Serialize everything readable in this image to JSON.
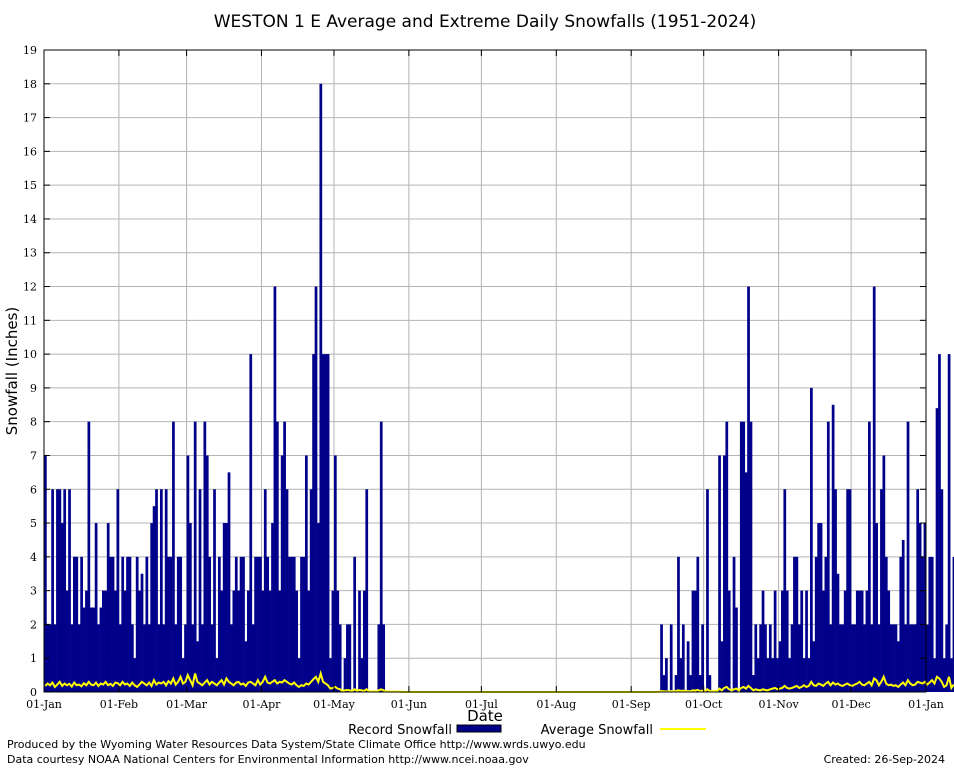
{
  "chart_data": {
    "type": "bar",
    "title": "WESTON 1 E Average and Extreme Daily Snowfalls (1951-2024)",
    "xlabel": "Date",
    "ylabel": "Snowfall (Inches)",
    "ylim": [
      0,
      19
    ],
    "yticks": [
      "0",
      "1",
      "2",
      "3",
      "4",
      "5",
      "6",
      "7",
      "8",
      "9",
      "10",
      "11",
      "12",
      "13",
      "14",
      "15",
      "16",
      "17",
      "18",
      "19"
    ],
    "xticks": [
      {
        "label": "01-Jan",
        "day": 0
      },
      {
        "label": "01-Feb",
        "day": 31
      },
      {
        "label": "01-Mar",
        "day": 59
      },
      {
        "label": "01-Apr",
        "day": 90
      },
      {
        "label": "01-May",
        "day": 120
      },
      {
        "label": "01-Jun",
        "day": 151
      },
      {
        "label": "01-Jul",
        "day": 181
      },
      {
        "label": "01-Aug",
        "day": 212
      },
      {
        "label": "01-Sep",
        "day": 243
      },
      {
        "label": "01-Oct",
        "day": 273
      },
      {
        "label": "01-Nov",
        "day": 304
      },
      {
        "label": "01-Dec",
        "day": 334
      },
      {
        "label": "01-Jan",
        "day": 365
      }
    ],
    "grid": true,
    "colors": {
      "record": "#00008b",
      "average": "#ffff00",
      "grid": "#b4b4b4"
    },
    "series": [
      {
        "name": "Record Snowfall",
        "start_date": "01-Jan",
        "values": [
          7,
          2,
          2,
          6,
          2,
          6,
          6,
          5,
          6,
          3,
          6,
          2,
          4,
          4,
          2,
          4,
          2.5,
          3,
          8,
          2.5,
          2.5,
          5,
          2,
          2.5,
          3,
          3,
          5,
          4,
          4,
          3,
          6,
          2,
          4,
          3,
          4,
          4,
          2,
          1,
          4,
          3,
          3.5,
          2,
          4,
          2,
          5,
          5.5,
          6,
          2,
          6,
          2,
          6,
          4,
          4,
          8,
          2,
          4,
          4,
          1,
          2,
          7,
          5,
          2,
          8,
          1.5,
          6,
          2,
          8,
          7,
          4,
          2,
          6,
          1,
          4,
          3,
          5,
          5,
          6.5,
          2,
          3,
          4,
          3,
          4,
          4,
          1.5,
          3,
          10,
          2,
          4,
          4,
          4,
          3,
          6,
          4,
          3,
          5,
          12,
          8,
          3,
          7,
          8,
          6,
          4,
          4,
          4,
          3,
          1,
          4,
          4,
          7,
          3,
          6,
          10,
          12,
          5,
          18,
          10,
          10,
          10,
          1,
          3,
          7,
          3,
          2,
          0,
          1,
          2,
          2,
          0,
          4,
          0,
          3,
          1,
          3,
          6,
          0,
          0,
          0,
          0,
          2,
          8,
          2,
          0,
          0,
          0,
          0,
          0,
          0,
          0,
          0,
          0,
          0,
          0,
          0,
          0,
          0,
          0,
          0,
          0,
          0,
          0,
          0,
          0,
          0,
          0,
          0,
          0,
          0,
          0,
          0,
          0,
          0,
          0,
          0,
          0,
          0,
          0,
          0,
          0,
          0,
          0,
          0,
          0,
          0,
          0,
          0,
          0,
          0,
          0,
          0,
          0,
          0,
          0,
          0,
          0,
          0,
          0,
          0,
          0,
          0,
          0,
          0,
          0,
          0,
          0,
          0,
          0,
          0,
          0,
          0,
          0,
          0,
          0,
          0,
          0,
          0,
          0,
          0,
          0,
          0,
          0,
          0,
          0,
          0,
          0,
          0,
          0,
          0,
          0,
          0,
          0,
          0,
          0,
          0,
          0,
          0,
          0,
          0,
          0,
          0,
          0,
          0,
          0,
          0,
          0,
          0,
          0,
          0,
          0,
          0,
          0,
          0,
          0,
          0,
          0,
          0,
          2,
          0.5,
          1,
          0,
          2,
          0,
          0.5,
          4,
          1,
          2,
          0,
          1.5,
          0.5,
          3,
          3,
          4,
          0.5,
          2,
          0,
          6,
          0.5,
          0,
          0,
          0,
          7,
          1.5,
          7,
          8,
          3,
          0,
          4,
          2.5,
          0,
          8,
          8,
          6.5,
          12,
          8,
          0.5,
          2,
          1,
          2,
          3,
          2,
          1,
          2,
          1,
          3,
          1,
          1.5,
          3,
          6,
          3,
          1,
          2,
          4,
          4,
          2,
          3,
          1,
          3,
          1,
          9,
          1.5,
          4,
          5,
          5,
          3,
          4,
          8,
          2,
          8.5,
          6,
          3.5,
          2,
          2,
          3,
          6,
          6,
          2,
          2,
          3,
          3,
          3,
          2,
          3,
          8,
          2,
          12,
          5,
          2,
          6,
          7,
          4,
          3,
          2,
          2,
          2,
          1.5,
          4,
          4.5,
          2,
          8,
          2,
          2,
          2,
          6,
          5,
          4,
          5,
          2,
          4,
          4,
          1,
          8.4,
          10,
          6,
          1,
          2,
          10,
          1,
          4
        ]
      },
      {
        "name": "Average Snowfall",
        "start_date": "01-Jan",
        "values": [
          0.18,
          0.25,
          0.2,
          0.28,
          0.15,
          0.22,
          0.3,
          0.18,
          0.25,
          0.2,
          0.24,
          0.16,
          0.28,
          0.2,
          0.22,
          0.17,
          0.26,
          0.2,
          0.3,
          0.22,
          0.2,
          0.28,
          0.18,
          0.25,
          0.22,
          0.3,
          0.2,
          0.24,
          0.18,
          0.28,
          0.26,
          0.2,
          0.3,
          0.22,
          0.25,
          0.18,
          0.28,
          0.2,
          0.15,
          0.22,
          0.3,
          0.25,
          0.2,
          0.28,
          0.18,
          0.35,
          0.22,
          0.28,
          0.25,
          0.3,
          0.2,
          0.32,
          0.25,
          0.4,
          0.22,
          0.3,
          0.45,
          0.25,
          0.3,
          0.5,
          0.35,
          0.2,
          0.55,
          0.3,
          0.25,
          0.2,
          0.28,
          0.35,
          0.22,
          0.3,
          0.25,
          0.2,
          0.28,
          0.35,
          0.22,
          0.4,
          0.3,
          0.25,
          0.2,
          0.28,
          0.3,
          0.22,
          0.25,
          0.18,
          0.28,
          0.3,
          0.25,
          0.2,
          0.35,
          0.22,
          0.3,
          0.45,
          0.28,
          0.25,
          0.3,
          0.35,
          0.25,
          0.3,
          0.28,
          0.35,
          0.3,
          0.25,
          0.22,
          0.28,
          0.2,
          0.15,
          0.2,
          0.18,
          0.25,
          0.22,
          0.3,
          0.38,
          0.45,
          0.3,
          0.55,
          0.3,
          0.25,
          0.2,
          0.1,
          0.12,
          0.15,
          0.1,
          0.08,
          0.03,
          0.05,
          0.06,
          0.05,
          0.03,
          0.08,
          0.04,
          0.06,
          0.05,
          0.03,
          0.08,
          0.02,
          0.02,
          0.02,
          0.01,
          0.05,
          0.08,
          0.05,
          0.02,
          0.01,
          0.01,
          0.01,
          0.01,
          0.01,
          0.01,
          0,
          0,
          0,
          0,
          0,
          0,
          0,
          0,
          0,
          0,
          0,
          0,
          0,
          0,
          0,
          0,
          0,
          0,
          0,
          0,
          0,
          0,
          0,
          0,
          0,
          0,
          0,
          0,
          0,
          0,
          0,
          0,
          0,
          0,
          0,
          0,
          0,
          0,
          0,
          0,
          0,
          0,
          0,
          0,
          0,
          0,
          0,
          0,
          0,
          0,
          0,
          0,
          0,
          0,
          0,
          0,
          0,
          0,
          0,
          0,
          0,
          0,
          0,
          0,
          0,
          0,
          0,
          0,
          0,
          0,
          0,
          0,
          0,
          0,
          0,
          0,
          0,
          0,
          0,
          0,
          0,
          0,
          0,
          0,
          0,
          0,
          0,
          0,
          0,
          0,
          0,
          0,
          0,
          0,
          0,
          0,
          0,
          0,
          0,
          0,
          0,
          0,
          0,
          0,
          0,
          0,
          0.01,
          0.03,
          0.02,
          0.02,
          0.01,
          0.03,
          0.02,
          0.03,
          0.05,
          0.03,
          0.04,
          0.02,
          0.03,
          0.02,
          0.05,
          0.04,
          0.06,
          0.03,
          0.04,
          0.02,
          0.08,
          0.03,
          0.02,
          0.03,
          0.02,
          0.1,
          0.05,
          0.12,
          0.15,
          0.08,
          0.05,
          0.08,
          0.1,
          0.05,
          0.12,
          0.15,
          0.1,
          0.18,
          0.12,
          0.05,
          0.08,
          0.06,
          0.05,
          0.08,
          0.06,
          0.05,
          0.08,
          0.1,
          0.12,
          0.08,
          0.1,
          0.12,
          0.18,
          0.12,
          0.1,
          0.12,
          0.15,
          0.18,
          0.12,
          0.15,
          0.2,
          0.15,
          0.18,
          0.3,
          0.2,
          0.18,
          0.25,
          0.22,
          0.18,
          0.25,
          0.3,
          0.2,
          0.28,
          0.22,
          0.25,
          0.2,
          0.18,
          0.22,
          0.25,
          0.2,
          0.18,
          0.22,
          0.25,
          0.3,
          0.22,
          0.2,
          0.25,
          0.3,
          0.2,
          0.4,
          0.35,
          0.2,
          0.3,
          0.45,
          0.25,
          0.2,
          0.22,
          0.18,
          0.2,
          0.15,
          0.22,
          0.28,
          0.2,
          0.35,
          0.25,
          0.2,
          0.22,
          0.3,
          0.28,
          0.25,
          0.3,
          0.22,
          0.28,
          0.35,
          0.25,
          0.45,
          0.4,
          0.3,
          0.15,
          0.2,
          0.45,
          0.12,
          0.22
        ]
      }
    ],
    "legend": {
      "position": "bottom"
    }
  },
  "footer": {
    "credit1": "Produced by the Wyoming Water Resources Data System/State Climate Office http://www.wrds.uwyo.edu",
    "credit2": "Data courtesy NOAA National Centers for Environmental Information http://www.ncei.noaa.gov",
    "created": "Created:  26-Sep-2024"
  }
}
